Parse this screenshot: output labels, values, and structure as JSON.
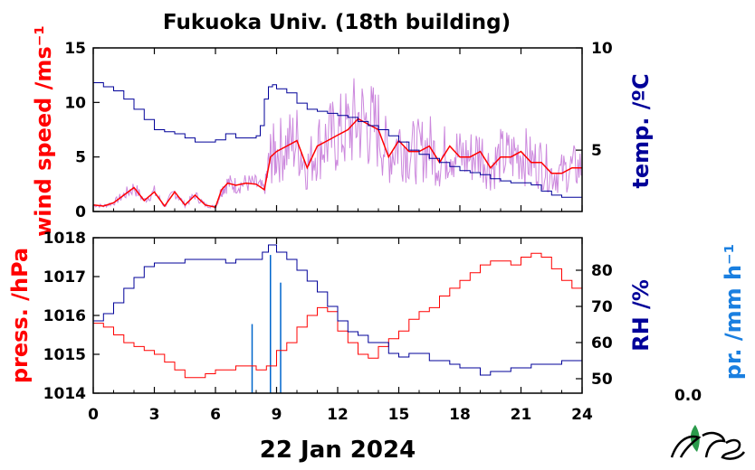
{
  "title": "Fukuoka Univ. (18th building)",
  "date_label": "22 Jan 2024",
  "precip_value": "0.0",
  "colors": {
    "wind": "#ff0000",
    "wind_raw": "#cc88dd",
    "temp": "#000099",
    "press": "#ff0000",
    "rh": "#000099",
    "precip": "#0066cc",
    "precip_label": "#1a7fe0",
    "logo_green": "#2a9a4a"
  },
  "chart_data": [
    {
      "type": "line",
      "x_unit": "hour",
      "xlim": [
        0,
        24
      ],
      "x_ticks": [
        "0",
        "3",
        "6",
        "9",
        "12",
        "15",
        "18",
        "21",
        "24"
      ],
      "left_axis": {
        "label": "wind speed /ms⁻¹",
        "lim": [
          0,
          15
        ],
        "ticks": [
          "0",
          "5",
          "10",
          "15"
        ]
      },
      "right_axis": {
        "label": "temp. /ºC",
        "lim": [
          2,
          10
        ],
        "ticks": [
          "5",
          "10"
        ]
      },
      "series": [
        {
          "axis": "left",
          "style": "smoothed",
          "x": [
            0,
            0.5,
            1,
            1.5,
            2,
            2.5,
            3,
            3.5,
            4,
            4.5,
            5,
            5.5,
            6,
            6.3,
            6.6,
            7,
            7.5,
            8,
            8.4,
            8.7,
            9,
            9.5,
            10,
            10.5,
            11,
            11.5,
            12,
            12.5,
            13,
            13.5,
            14,
            14.5,
            15,
            15.5,
            16,
            16.5,
            17,
            17.5,
            18,
            18.5,
            19,
            19.5,
            20,
            20.5,
            21,
            21.5,
            22,
            22.5,
            23,
            23.5,
            24
          ],
          "y": [
            0.6,
            0.5,
            0.8,
            1.5,
            2.2,
            1.0,
            1.8,
            0.5,
            1.8,
            0.6,
            1.5,
            0.6,
            0.4,
            2.0,
            2.6,
            2.4,
            2.6,
            2.5,
            2.0,
            5.0,
            5.5,
            6.0,
            6.5,
            4.0,
            6.0,
            6.5,
            7.0,
            7.5,
            8.5,
            8.0,
            7.5,
            5.0,
            6.5,
            5.5,
            5.5,
            6.0,
            4.5,
            6.0,
            5.0,
            5.0,
            5.5,
            4.0,
            5.0,
            5.0,
            5.5,
            4.5,
            4.5,
            3.5,
            3.5,
            4.0,
            4.0
          ]
        },
        {
          "axis": "left",
          "style": "raw",
          "x": [
            0,
            0.5,
            1,
            1.5,
            2,
            2.5,
            3,
            3.5,
            4,
            4.5,
            5,
            5.5,
            6,
            6.3,
            6.6,
            7,
            7.5,
            8,
            8.4,
            8.7,
            9,
            9.5,
            10,
            10.5,
            11,
            11.5,
            12,
            12.5,
            13,
            13.5,
            14,
            14.5,
            15,
            15.5,
            16,
            16.5,
            17,
            17.5,
            18,
            18.5,
            19,
            19.5,
            20,
            20.5,
            21,
            21.5,
            22,
            22.5,
            23,
            23.5,
            24
          ],
          "y": [
            0.6,
            0.5,
            0.8,
            1.5,
            2.2,
            1.0,
            1.8,
            0.5,
            1.8,
            0.6,
            1.5,
            0.6,
            0.4,
            2.0,
            2.6,
            2.4,
            2.6,
            2.5,
            2.0,
            5.0,
            5.5,
            6.0,
            6.5,
            4.0,
            6.0,
            6.5,
            7.0,
            7.5,
            8.5,
            8.0,
            7.5,
            5.0,
            6.5,
            5.5,
            5.5,
            6.0,
            4.5,
            6.0,
            5.0,
            5.0,
            5.5,
            4.0,
            5.0,
            5.0,
            5.5,
            4.5,
            4.5,
            3.5,
            3.5,
            4.0,
            4.0
          ]
        },
        {
          "axis": "right",
          "style": "temperature",
          "x": [
            0,
            0.5,
            1,
            1.5,
            2,
            2.5,
            3,
            3.5,
            4,
            4.5,
            5,
            5.5,
            6,
            6.5,
            7,
            7.5,
            8,
            8.2,
            8.4,
            8.6,
            8.8,
            9,
            9.5,
            10,
            10.5,
            11,
            11.5,
            12,
            12.5,
            13,
            13.5,
            14,
            14.5,
            15,
            15.5,
            16,
            16.5,
            17,
            17.5,
            18,
            18.5,
            19,
            19.5,
            20,
            20.5,
            21,
            21.5,
            22,
            22.5,
            23,
            23.5,
            24
          ],
          "y": [
            8.3,
            8.1,
            7.9,
            7.5,
            7.0,
            6.5,
            6.0,
            5.9,
            5.8,
            5.6,
            5.4,
            5.4,
            5.5,
            5.8,
            5.6,
            5.6,
            5.7,
            6.2,
            7.5,
            8.1,
            8.2,
            8.0,
            7.8,
            7.3,
            7.0,
            6.9,
            6.8,
            6.7,
            6.6,
            6.4,
            6.2,
            6.0,
            5.7,
            5.4,
            5.0,
            4.8,
            4.6,
            4.4,
            4.2,
            4.0,
            3.9,
            3.8,
            3.6,
            3.5,
            3.4,
            3.4,
            3.3,
            3.0,
            2.8,
            2.7,
            2.7,
            2.7
          ]
        }
      ]
    },
    {
      "type": "line",
      "x_unit": "hour",
      "xlim": [
        0,
        24
      ],
      "x_ticks": [
        "0",
        "3",
        "6",
        "9",
        "12",
        "15",
        "18",
        "21",
        "24"
      ],
      "xlabel": "22 Jan 2024",
      "left_axis": {
        "label": "press. /hPa",
        "lim": [
          1014,
          1018
        ],
        "ticks": [
          "1014",
          "1015",
          "1016",
          "1017",
          "1018"
        ]
      },
      "right_axis": {
        "label": "RH /%",
        "lim": [
          46,
          89
        ],
        "ticks": [
          "50",
          "60",
          "70",
          "80"
        ]
      },
      "precip_axis": {
        "label": "pr. /mm h⁻¹"
      },
      "series": [
        {
          "axis": "left",
          "style": "pressure",
          "x": [
            0,
            0.5,
            1,
            1.5,
            2,
            2.5,
            3,
            3.5,
            4,
            4.5,
            5,
            5.5,
            6,
            6.5,
            7,
            7.5,
            8,
            8.5,
            9,
            9.5,
            10,
            10.5,
            11,
            11.5,
            12,
            12.5,
            13,
            13.5,
            14,
            14.5,
            15,
            15.5,
            16,
            16.5,
            17,
            17.5,
            18,
            18.5,
            19,
            19.5,
            20,
            20.5,
            21,
            21.5,
            22,
            22.5,
            23,
            23.5,
            24
          ],
          "y": [
            1015.8,
            1015.7,
            1015.5,
            1015.3,
            1015.2,
            1015.1,
            1015.0,
            1014.8,
            1014.6,
            1014.4,
            1014.4,
            1014.5,
            1014.6,
            1014.6,
            1014.7,
            1014.7,
            1014.6,
            1014.7,
            1015.1,
            1015.3,
            1015.7,
            1016.0,
            1016.2,
            1016.1,
            1015.6,
            1015.3,
            1015.0,
            1014.9,
            1015.2,
            1015.4,
            1015.6,
            1015.9,
            1016.1,
            1016.2,
            1016.5,
            1016.7,
            1016.9,
            1017.1,
            1017.3,
            1017.4,
            1017.4,
            1017.3,
            1017.5,
            1017.6,
            1017.5,
            1017.2,
            1016.9,
            1016.7,
            1016.6
          ]
        },
        {
          "axis": "right",
          "style": "humidity",
          "x": [
            0,
            0.5,
            1,
            1.5,
            2,
            2.5,
            3,
            3.5,
            4,
            4.5,
            5,
            5.5,
            6,
            6.5,
            7,
            7.5,
            8,
            8.3,
            8.6,
            9,
            9.5,
            10,
            10.5,
            11,
            11.5,
            12,
            12.5,
            13,
            13.5,
            14,
            14.5,
            15,
            15.5,
            16,
            16.5,
            17,
            17.5,
            18,
            18.5,
            19,
            19.5,
            20,
            20.5,
            21,
            21.5,
            22,
            22.5,
            23,
            23.5,
            24
          ],
          "y": [
            66,
            68,
            71,
            75,
            78,
            81,
            82,
            82,
            82,
            83,
            83,
            83,
            83,
            82,
            83,
            83,
            83,
            85,
            87,
            85,
            83,
            80,
            77,
            74,
            70,
            66,
            63,
            62,
            60,
            60,
            57,
            56,
            57,
            57,
            55,
            55,
            54,
            53,
            53,
            51,
            52,
            52,
            53,
            53,
            54,
            54,
            54,
            55,
            55,
            55
          ]
        },
        {
          "axis": "precip",
          "style": "bars",
          "x": [
            7.8,
            8.7,
            9.2
          ],
          "y": [
            20,
            40,
            32
          ]
        }
      ]
    }
  ]
}
